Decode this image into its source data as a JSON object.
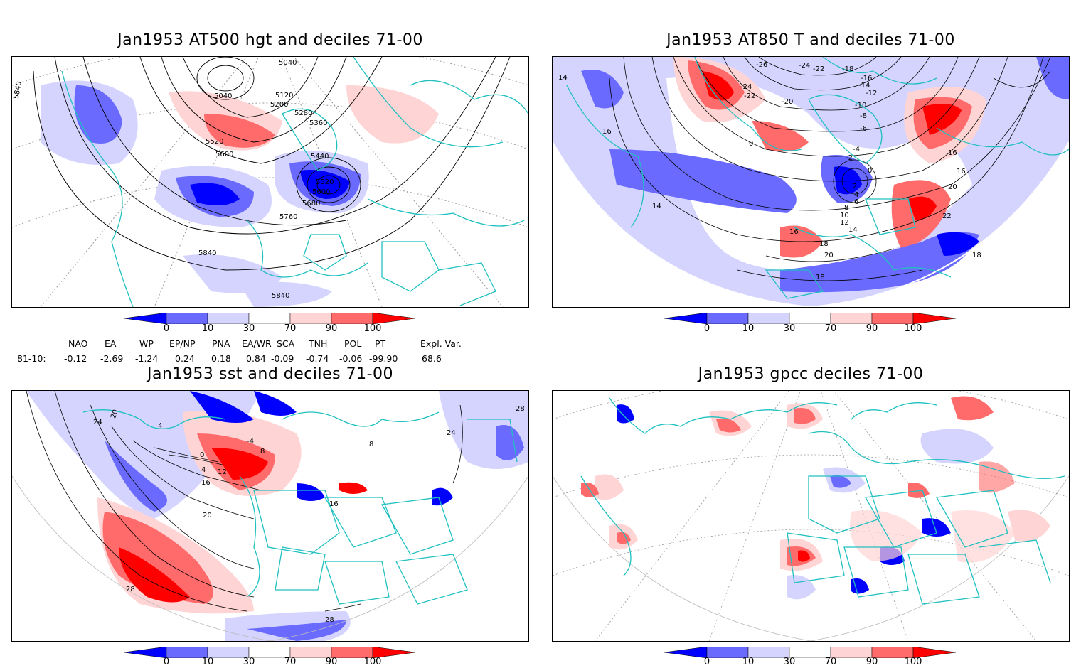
{
  "panels": [
    {
      "id": "p1",
      "title": "Jan1953 AT500 hgt and deciles 71-00",
      "contour_labels": [
        "5040",
        "5040",
        "5120",
        "5200",
        "5280",
        "5360",
        "5520",
        "5600",
        "5440",
        "5520",
        "5600",
        "5680",
        "5760",
        "5840",
        "5840",
        "5840"
      ]
    },
    {
      "id": "p2",
      "title": "Jan1953 AT850 T and deciles 71-00",
      "contour_labels": [
        "-26",
        "-24",
        "-22",
        "-18",
        "-16",
        "-14",
        "-12",
        "-10",
        "-8",
        "-6",
        "-4",
        "-2",
        "0",
        "0",
        "2",
        "4",
        "6",
        "8",
        "10",
        "12",
        "14",
        "14",
        "14",
        "16",
        "16",
        "16",
        "18",
        "18",
        "18",
        "20",
        "20",
        "22",
        "-24",
        "-22",
        "-20",
        "16"
      ]
    },
    {
      "id": "p3",
      "title": "Jan1953 sst and deciles 71-00",
      "contour_labels": [
        "24",
        "20",
        "4",
        "8",
        "0",
        "4",
        "12",
        "16",
        "20",
        "24",
        "28",
        "28",
        "28",
        "16",
        "-4",
        "8"
      ]
    },
    {
      "id": "p4",
      "title": "Jan1953 gpcc deciles 71-00",
      "contour_labels": []
    }
  ],
  "colorbar": {
    "labels": [
      "0",
      "10",
      "30",
      "70",
      "90",
      "100"
    ],
    "colors": [
      "#0000ff",
      "#6a6aff",
      "#d4d4ff",
      "#ffffff",
      "#ffd4d4",
      "#ff6a6a",
      "#ff0000"
    ]
  },
  "indices": {
    "headers": [
      "NAO",
      "EA",
      "WP",
      "EP/NP",
      "PNA",
      "EA/WR",
      "SCA",
      "TNH",
      "POL",
      "PT",
      "Expl. Var."
    ],
    "row_label": "81-10:",
    "values": [
      "-0.12",
      "-2.69",
      "-1.24",
      "0.24",
      "0.18",
      "0.84",
      "-0.09",
      "-0.74",
      "-0.06",
      "-99.90",
      "68.6"
    ]
  },
  "colors": {
    "coast": "#20c0c0",
    "contour": "#000000"
  }
}
